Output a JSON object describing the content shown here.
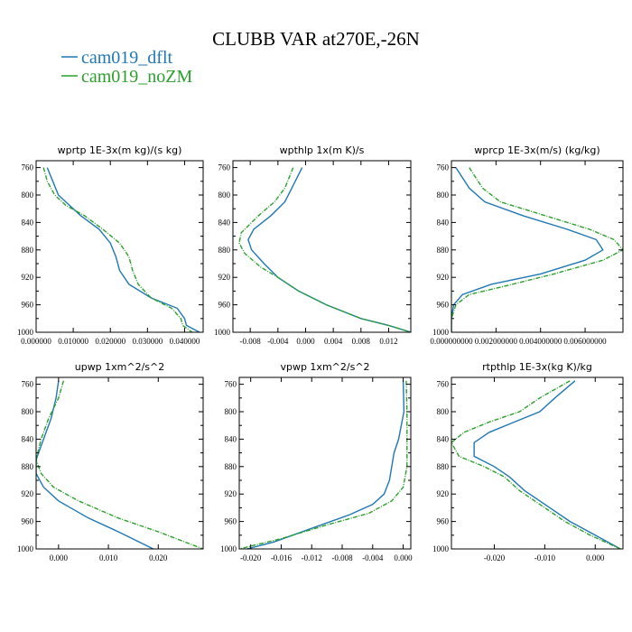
{
  "figure": {
    "title": "CLUBB VAR at270E,-26N",
    "legend": [
      {
        "label": "cam019_dflt",
        "color": "#1f77b4"
      },
      {
        "label": "cam019_noZM",
        "color": "#2ca02c"
      }
    ]
  },
  "chart_data": [
    {
      "type": "line",
      "title": "wprtp  1E-3x(m kg)/(s kg)",
      "xlim": [
        0.0,
        0.045
      ],
      "xticks": [
        0.0,
        0.01,
        0.02,
        0.03,
        0.04
      ],
      "xtick_labels": [
        "0.000000",
        "0.010000",
        "0.020000",
        "0.030000",
        "0.040000"
      ],
      "ylim": [
        1000,
        750
      ],
      "yticks": [
        760,
        800,
        840,
        880,
        920,
        960,
        1000
      ],
      "ytick_labels": [
        "760",
        "800",
        "840",
        "880",
        "920",
        "960",
        "1000"
      ],
      "series": [
        {
          "color": "#1f77b4",
          "dashed": false,
          "points": [
            [
              0.003,
              760
            ],
            [
              0.0045,
              780
            ],
            [
              0.006,
              800
            ],
            [
              0.008,
              810
            ],
            [
              0.012,
              830
            ],
            [
              0.017,
              850
            ],
            [
              0.02,
              870
            ],
            [
              0.0215,
              890
            ],
            [
              0.0225,
              910
            ],
            [
              0.025,
              930
            ],
            [
              0.031,
              950
            ],
            [
              0.038,
              965
            ],
            [
              0.04,
              980
            ],
            [
              0.0405,
              990
            ],
            [
              0.044,
              1000
            ]
          ]
        },
        {
          "color": "#2ca02c",
          "dashed": true,
          "points": [
            [
              0.002,
              760
            ],
            [
              0.003,
              780
            ],
            [
              0.005,
              800
            ],
            [
              0.008,
              815
            ],
            [
              0.013,
              830
            ],
            [
              0.018,
              850
            ],
            [
              0.0225,
              870
            ],
            [
              0.025,
              890
            ],
            [
              0.026,
              910
            ],
            [
              0.0275,
              930
            ],
            [
              0.031,
              950
            ],
            [
              0.0365,
              965
            ],
            [
              0.039,
              980
            ],
            [
              0.0395,
              990
            ],
            [
              0.042,
              1000
            ]
          ]
        }
      ]
    },
    {
      "type": "line",
      "title": "wpthlp  1x(m K)/s",
      "xlim": [
        -0.0105,
        0.0152
      ],
      "xticks": [
        -0.008,
        -0.004,
        0.0,
        0.004,
        0.008,
        0.012
      ],
      "xtick_labels": [
        "-0.008",
        "-0.004",
        "0.000",
        "0.004",
        "0.008",
        "0.012"
      ],
      "ylim": [
        1000,
        750
      ],
      "yticks": [
        760,
        800,
        840,
        880,
        920,
        960,
        1000
      ],
      "ytick_labels": [
        "760",
        "800",
        "840",
        "880",
        "920",
        "960",
        "1000"
      ],
      "series": [
        {
          "color": "#1f77b4",
          "dashed": false,
          "points": [
            [
              -0.0005,
              760
            ],
            [
              -0.002,
              790
            ],
            [
              -0.003,
              810
            ],
            [
              -0.005,
              830
            ],
            [
              -0.0075,
              850
            ],
            [
              -0.0083,
              865
            ],
            [
              -0.0078,
              880
            ],
            [
              -0.006,
              900
            ],
            [
              -0.004,
              920
            ],
            [
              -0.001,
              940
            ],
            [
              0.003,
              960
            ],
            [
              0.008,
              980
            ],
            [
              0.012,
              990
            ],
            [
              0.0152,
              1000
            ]
          ]
        },
        {
          "color": "#2ca02c",
          "dashed": true,
          "points": [
            [
              -0.0018,
              760
            ],
            [
              -0.003,
              790
            ],
            [
              -0.0045,
              810
            ],
            [
              -0.0068,
              830
            ],
            [
              -0.0093,
              855
            ],
            [
              -0.0096,
              870
            ],
            [
              -0.0088,
              885
            ],
            [
              -0.0065,
              905
            ],
            [
              -0.004,
              920
            ],
            [
              -0.001,
              940
            ],
            [
              0.003,
              960
            ],
            [
              0.008,
              980
            ],
            [
              0.012,
              990
            ],
            [
              0.0152,
              1000
            ]
          ]
        }
      ]
    },
    {
      "type": "line",
      "title": "wprcp  1E-3x(m/s) (kg/kg)",
      "xlim": [
        0.0,
        0.0077
      ],
      "xticks": [
        0.0,
        0.002,
        0.004,
        0.006
      ],
      "xtick_labels": [
        "0.000000000",
        "0.002000000",
        "0.004000000",
        "0.006000000"
      ],
      "ylim": [
        1000,
        750
      ],
      "yticks": [
        760,
        800,
        840,
        880,
        920,
        960,
        1000
      ],
      "ytick_labels": [
        "760",
        "800",
        "840",
        "880",
        "920",
        "960",
        "1000"
      ],
      "series": [
        {
          "color": "#1f77b4",
          "dashed": false,
          "points": [
            [
              0.0002,
              760
            ],
            [
              0.0008,
              790
            ],
            [
              0.0015,
              810
            ],
            [
              0.0032,
              830
            ],
            [
              0.0052,
              850
            ],
            [
              0.0065,
              865
            ],
            [
              0.0068,
              880
            ],
            [
              0.006,
              895
            ],
            [
              0.004,
              915
            ],
            [
              0.0018,
              930
            ],
            [
              0.0005,
              945
            ],
            [
              0.0001,
              960
            ],
            [
              0.0,
              980
            ],
            [
              0.0,
              1000
            ]
          ]
        },
        {
          "color": "#2ca02c",
          "dashed": true,
          "points": [
            [
              0.0008,
              760
            ],
            [
              0.0014,
              790
            ],
            [
              0.0022,
              810
            ],
            [
              0.0042,
              830
            ],
            [
              0.0062,
              850
            ],
            [
              0.0073,
              865
            ],
            [
              0.0077,
              880
            ],
            [
              0.0068,
              895
            ],
            [
              0.0046,
              915
            ],
            [
              0.0025,
              932
            ],
            [
              0.0008,
              945
            ],
            [
              0.0002,
              960
            ],
            [
              0.0,
              980
            ],
            [
              0.0,
              1000
            ]
          ]
        }
      ]
    },
    {
      "type": "line",
      "title": "upwp  1xm^2/s^2",
      "xlim": [
        -0.0045,
        0.029
      ],
      "xticks": [
        0.0,
        0.01,
        0.02
      ],
      "xtick_labels": [
        "0.000",
        "0.010",
        "0.020"
      ],
      "ylim": [
        1000,
        750
      ],
      "yticks": [
        760,
        800,
        840,
        880,
        920,
        960,
        1000
      ],
      "ytick_labels": [
        "760",
        "800",
        "840",
        "880",
        "920",
        "960",
        "1000"
      ],
      "series": [
        {
          "color": "#1f77b4",
          "dashed": false,
          "points": [
            [
              0.0,
              755
            ],
            [
              -0.0005,
              780
            ],
            [
              -0.0015,
              810
            ],
            [
              -0.003,
              840
            ],
            [
              -0.0045,
              870
            ],
            [
              -0.0045,
              890
            ],
            [
              -0.003,
              910
            ],
            [
              0.0,
              930
            ],
            [
              0.006,
              955
            ],
            [
              0.012,
              975
            ],
            [
              0.019,
              1000
            ]
          ]
        },
        {
          "color": "#2ca02c",
          "dashed": true,
          "points": [
            [
              0.001,
              755
            ],
            [
              0.0,
              780
            ],
            [
              -0.002,
              810
            ],
            [
              -0.0035,
              840
            ],
            [
              -0.0045,
              870
            ],
            [
              -0.0035,
              890
            ],
            [
              -0.001,
              910
            ],
            [
              0.004,
              930
            ],
            [
              0.012,
              955
            ],
            [
              0.02,
              975
            ],
            [
              0.029,
              1000
            ]
          ]
        }
      ]
    },
    {
      "type": "line",
      "title": "vpwp  1xm^2/s^2",
      "xlim": [
        -0.0215,
        0.001
      ],
      "xticks": [
        -0.02,
        -0.016,
        -0.012,
        -0.008,
        -0.004,
        0.0
      ],
      "xtick_labels": [
        "-0.020",
        "-0.016",
        "-0.012",
        "-0.008",
        "-0.004",
        "0.000"
      ],
      "ylim": [
        1000,
        750
      ],
      "yticks": [
        760,
        800,
        840,
        880,
        920,
        960,
        1000
      ],
      "ytick_labels": [
        "760",
        "800",
        "840",
        "880",
        "920",
        "960",
        "1000"
      ],
      "series": [
        {
          "color": "#1f77b4",
          "dashed": false,
          "points": [
            [
              0.0,
              755
            ],
            [
              0.0001,
              800
            ],
            [
              -0.0006,
              840
            ],
            [
              -0.0012,
              860
            ],
            [
              -0.0015,
              880
            ],
            [
              -0.0018,
              900
            ],
            [
              -0.0025,
              920
            ],
            [
              -0.004,
              935
            ],
            [
              -0.007,
              950
            ],
            [
              -0.012,
              970
            ],
            [
              -0.017,
              990
            ],
            [
              -0.0205,
              1000
            ]
          ]
        },
        {
          "color": "#2ca02c",
          "dashed": true,
          "points": [
            [
              0.0004,
              755
            ],
            [
              0.0005,
              800
            ],
            [
              0.0005,
              840
            ],
            [
              0.0005,
              880
            ],
            [
              0.0,
              910
            ],
            [
              -0.0015,
              930
            ],
            [
              -0.0045,
              948
            ],
            [
              -0.01,
              965
            ],
            [
              -0.016,
              985
            ],
            [
              -0.0215,
              1000
            ]
          ]
        }
      ]
    },
    {
      "type": "line",
      "title": "rtpthlp  1E-3x(kg K)/kg",
      "xlim": [
        -0.0285,
        0.0055
      ],
      "xticks": [
        -0.02,
        -0.01,
        0.0
      ],
      "xtick_labels": [
        "-0.020",
        "-0.010",
        "0.000"
      ],
      "ylim": [
        1000,
        750
      ],
      "yticks": [
        760,
        800,
        840,
        880,
        920,
        960,
        1000
      ],
      "ytick_labels": [
        "760",
        "800",
        "840",
        "880",
        "920",
        "960",
        "1000"
      ],
      "series": [
        {
          "color": "#1f77b4",
          "dashed": false,
          "points": [
            [
              -0.004,
              755
            ],
            [
              -0.008,
              780
            ],
            [
              -0.011,
              800
            ],
            [
              -0.016,
              815
            ],
            [
              -0.021,
              830
            ],
            [
              -0.024,
              845
            ],
            [
              -0.024,
              865
            ],
            [
              -0.02,
              880
            ],
            [
              -0.017,
              895
            ],
            [
              -0.014,
              915
            ],
            [
              -0.01,
              935
            ],
            [
              -0.005,
              960
            ],
            [
              0.0,
              980
            ],
            [
              0.005,
              1000
            ]
          ]
        },
        {
          "color": "#2ca02c",
          "dashed": true,
          "points": [
            [
              -0.005,
              755
            ],
            [
              -0.011,
              780
            ],
            [
              -0.015,
              800
            ],
            [
              -0.021,
              815
            ],
            [
              -0.026,
              830
            ],
            [
              -0.0285,
              845
            ],
            [
              -0.027,
              865
            ],
            [
              -0.022,
              880
            ],
            [
              -0.018,
              895
            ],
            [
              -0.015,
              915
            ],
            [
              -0.011,
              935
            ],
            [
              -0.006,
              960
            ],
            [
              -0.001,
              980
            ],
            [
              0.005,
              1000
            ]
          ]
        }
      ]
    }
  ]
}
